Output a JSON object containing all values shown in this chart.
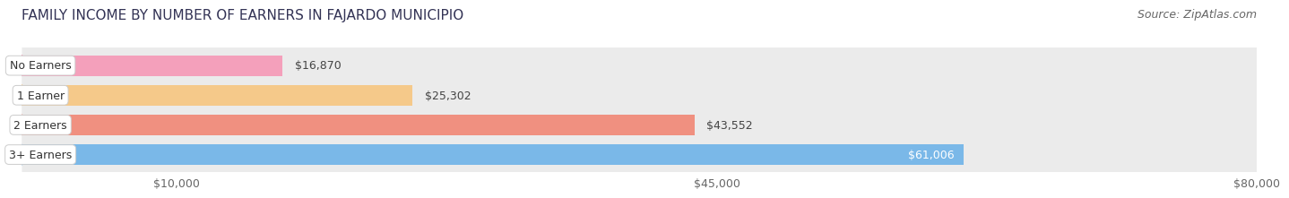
{
  "title": "FAMILY INCOME BY NUMBER OF EARNERS IN FAJARDO MUNICIPIO",
  "source": "Source: ZipAtlas.com",
  "categories": [
    "No Earners",
    "1 Earner",
    "2 Earners",
    "3+ Earners"
  ],
  "values": [
    16870,
    25302,
    43552,
    61006
  ],
  "bar_colors": [
    "#f4a0bb",
    "#f5c98a",
    "#f09080",
    "#7ab8e8"
  ],
  "label_colors": [
    "#555555",
    "#555555",
    "#555555",
    "#ffffff"
  ],
  "value_text_colors": [
    "#555555",
    "#555555",
    "#555555",
    "#ffffff"
  ],
  "xlim": [
    0,
    80000
  ],
  "xticks": [
    10000,
    45000,
    80000
  ],
  "xtick_labels": [
    "$10,000",
    "$45,000",
    "$80,000"
  ],
  "background_color": "#ffffff",
  "bar_background_color": "#ebebeb",
  "title_fontsize": 11,
  "source_fontsize": 9,
  "label_fontsize": 9,
  "tick_fontsize": 9
}
